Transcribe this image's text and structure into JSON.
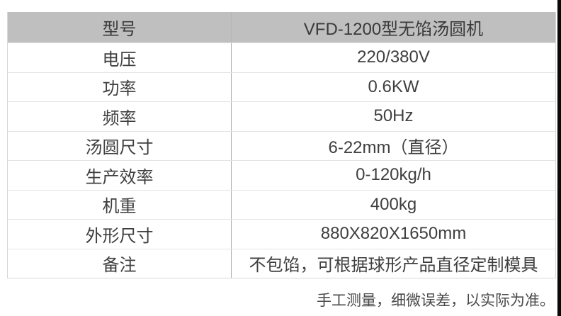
{
  "table": {
    "header": {
      "label": "型号",
      "value": "VFD-1200型无馅汤圆机"
    },
    "rows": [
      {
        "label": "电压",
        "value": "220/380V"
      },
      {
        "label": "功率",
        "value": "0.6KW"
      },
      {
        "label": "频率",
        "value": "50Hz"
      },
      {
        "label": "汤圆尺寸",
        "value": "6-22mm（直径）"
      },
      {
        "label": "生产效率",
        "value": "0-120kg/h"
      },
      {
        "label": "机重",
        "value": "400kg"
      },
      {
        "label": "外形尺寸",
        "value": "880X820X1650mm"
      },
      {
        "label": "备注",
        "value": "不包馅，可根据球形产品直径定制模具"
      }
    ]
  },
  "footer": {
    "note": "手工测量，细微误差，以实际为准。"
  },
  "colors": {
    "header_bg": "#bfbfbf",
    "row_separator": "#e3e3e3",
    "column_divider": "#a9a9a9",
    "text": "#3f3f3f",
    "footer_text": "#4a4a4a",
    "edge_strip": "#0a0a0a"
  }
}
